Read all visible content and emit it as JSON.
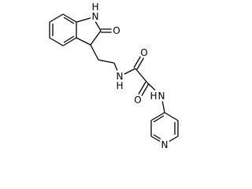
{
  "atoms": {
    "indole_nh_h": "H",
    "indole_nh_n": "N",
    "lactam_o": "O",
    "amide1_n": "N",
    "amide1_h": "H",
    "carbonyl1_o": "O",
    "carbonyl2_o": "O",
    "amide2_n": "N",
    "amide2_h": "H",
    "pyridine_n": "N"
  }
}
